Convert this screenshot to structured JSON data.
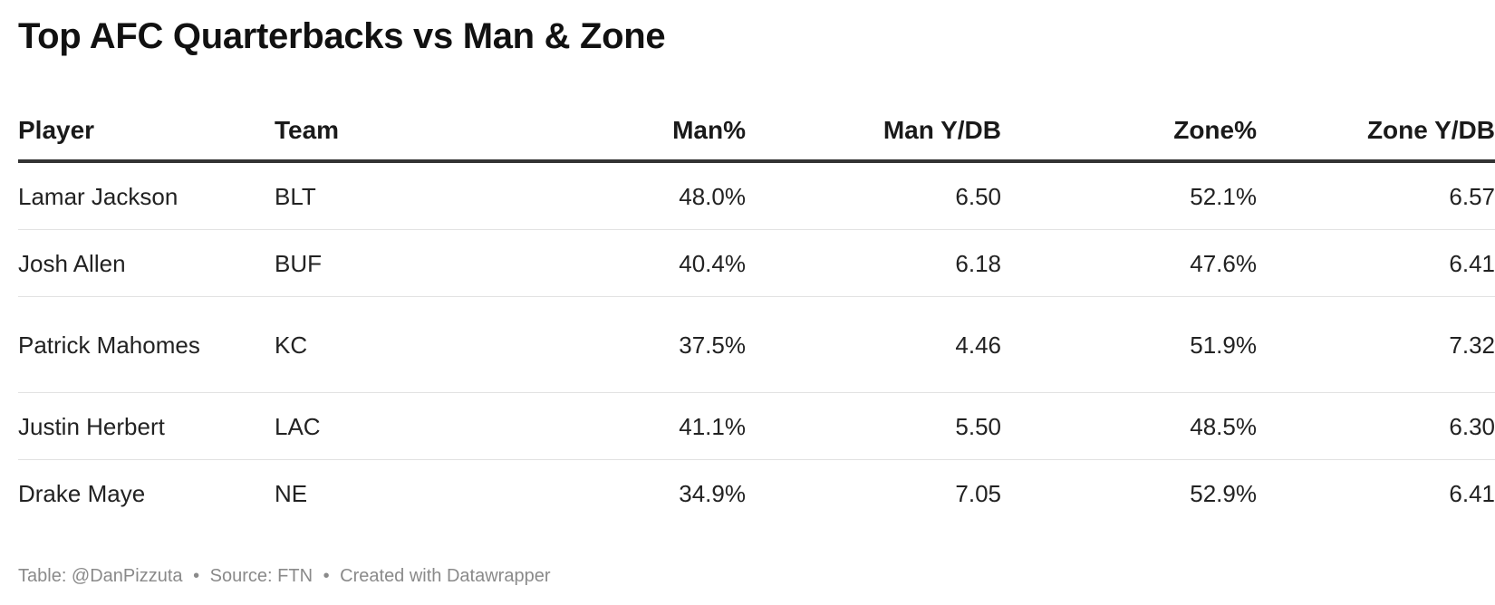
{
  "title": "Top AFC Quarterbacks vs Man & Zone",
  "chart_data": {
    "type": "table",
    "title": "Top AFC Quarterbacks vs Man & Zone",
    "columns": [
      "Player",
      "Team",
      "Man%",
      "Man Y/DB",
      "Zone%",
      "Zone Y/DB"
    ],
    "rows": [
      [
        "Lamar Jackson",
        "BLT",
        "48.0%",
        "6.50",
        "52.1%",
        "6.57"
      ],
      [
        "Josh Allen",
        "BUF",
        "40.4%",
        "6.18",
        "47.6%",
        "6.41"
      ],
      [
        "Patrick Mahomes",
        "KC",
        "37.5%",
        "4.46",
        "51.9%",
        "7.32"
      ],
      [
        "Justin Herbert",
        "LAC",
        "41.1%",
        "5.50",
        "48.5%",
        "6.30"
      ],
      [
        "Drake Maye",
        "NE",
        "34.9%",
        "7.05",
        "52.9%",
        "6.41"
      ]
    ]
  },
  "footer": {
    "credit": "Table: @DanPizzuta",
    "separator": "•",
    "source": "Source: FTN",
    "created": "Created with Datawrapper"
  },
  "colors": {
    "text": "#222222",
    "header_rule": "#333333",
    "row_rule": "#e2e2e2",
    "footer": "#8a8a8a"
  }
}
